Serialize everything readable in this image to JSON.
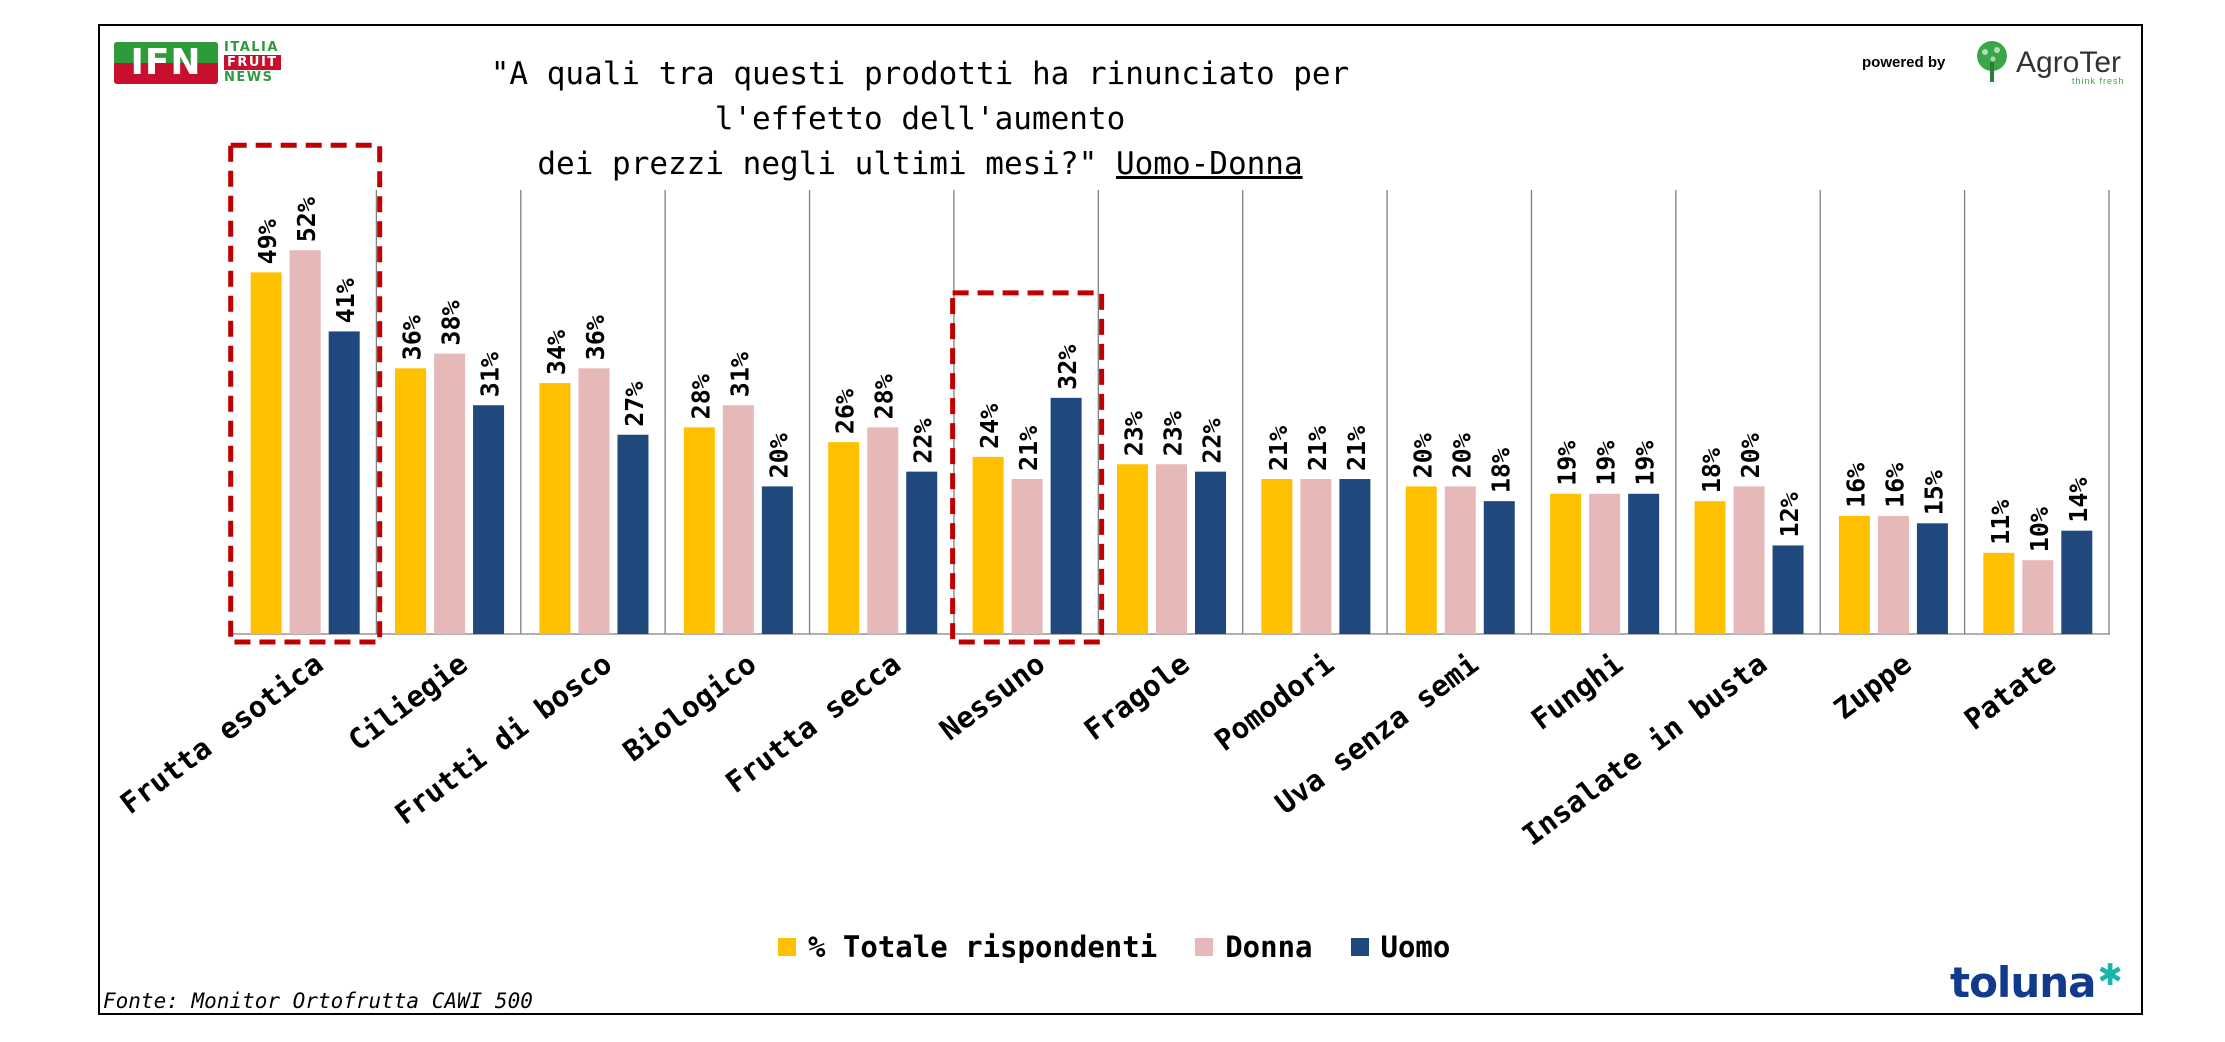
{
  "header": {
    "logo_left": {
      "mark": "IFN",
      "words": [
        "ITALIA",
        "FRUIT",
        "NEWS"
      ]
    },
    "title_line1": "\"A quali tra questi prodotti ha rinunciato per l'effetto dell'aumento",
    "title_line2": "dei prezzi negli ultimi mesi?\"",
    "title_underlined": "Uomo-Donna",
    "powered_by": "powered by",
    "logo_right": {
      "name": "AgroTer",
      "tagline": "think fresh"
    }
  },
  "footer": {
    "source": "Fonte: Monitor Ortofrutta CAWI 500",
    "brand": "toluna"
  },
  "colors": {
    "totale": "#FFC000",
    "donna": "#E6B8B7",
    "uomo": "#1F497D",
    "highlight_box": "#C00000"
  },
  "chart_data": {
    "type": "bar",
    "categories": [
      "Frutta esotica",
      "Ciliegie",
      "Frutti di bosco",
      "Biologico",
      "Frutta secca",
      "Nessuno",
      "Fragole",
      "Pomodori",
      "Uva senza semi",
      "Funghi",
      "Insalate in busta",
      "Zuppe",
      "Patate"
    ],
    "series": [
      {
        "name": "% Totale rispondenti",
        "color": "#FFC000",
        "values": [
          49,
          36,
          34,
          28,
          26,
          24,
          23,
          21,
          20,
          19,
          18,
          16,
          11
        ]
      },
      {
        "name": "Donna",
        "color": "#E6B8B7",
        "values": [
          52,
          38,
          36,
          31,
          28,
          21,
          23,
          21,
          20,
          19,
          20,
          16,
          10
        ]
      },
      {
        "name": "Uomo",
        "color": "#1F497D",
        "values": [
          41,
          31,
          27,
          20,
          22,
          32,
          22,
          21,
          18,
          19,
          12,
          15,
          14
        ]
      }
    ],
    "value_suffix": "%",
    "ylim": [
      0,
      60
    ],
    "highlighted_categories": [
      "Frutta esotica",
      "Nessuno"
    ],
    "legend_position": "bottom",
    "grid": false
  }
}
